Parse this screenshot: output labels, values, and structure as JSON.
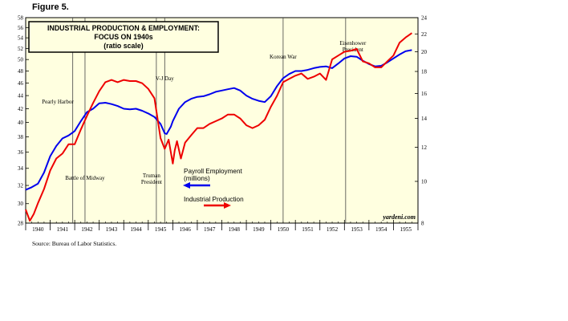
{
  "figure_label": "Figure 5.",
  "source": "Source: Bureau of Labor Statistics.",
  "watermark": "yardeni.com",
  "colors": {
    "background": "#FFFFE0",
    "employment": "#0000EE",
    "production": "#EE0000"
  },
  "chart_data": {
    "type": "line",
    "title": "INDUSTRIAL PRODUCTION & EMPLOYMENT:",
    "subtitle": "FOCUS ON 1940s",
    "subtitle2": "(ratio scale)",
    "x_range": [
      1940,
      1956
    ],
    "x_ticks": [
      "1940",
      "1941",
      "1942",
      "1943",
      "1944",
      "1945",
      "1946",
      "1947",
      "1948",
      "1949",
      "1950",
      "1951",
      "1952",
      "1953",
      "1954",
      "1955"
    ],
    "left_axis": {
      "scale": "log",
      "range": [
        28,
        58
      ],
      "ticks": [
        28,
        30,
        32,
        34,
        36,
        38,
        40,
        42,
        44,
        46,
        48,
        50,
        52,
        54,
        56,
        58
      ]
    },
    "right_axis": {
      "scale": "log",
      "range": [
        8,
        24
      ],
      "ticks": [
        8,
        10,
        12,
        14,
        16,
        18,
        20,
        22,
        24
      ]
    },
    "grid": false,
    "events": [
      {
        "x": 1941.92,
        "label": "Pearly Harbor",
        "label_side": "left"
      },
      {
        "x": 1942.42,
        "label": "Battle of Midway",
        "label_side": "left"
      },
      {
        "x": 1945.33,
        "label": "Truman",
        "label2": "President",
        "label_side": "left"
      },
      {
        "x": 1945.67,
        "label": "V-J Day",
        "label_side": "left"
      },
      {
        "x": 1950.5,
        "label": "Korean War",
        "label_side": "left"
      },
      {
        "x": 1953.05,
        "label": "Eisenhower",
        "label2": "President",
        "label_side": "right"
      }
    ],
    "series": [
      {
        "name": "Payroll Employment",
        "name2": "(millions)",
        "axis": "left",
        "arrow": "left",
        "x": [
          1940.0,
          1940.25,
          1940.5,
          1940.75,
          1941.0,
          1941.25,
          1941.5,
          1941.75,
          1942.0,
          1942.25,
          1942.5,
          1942.75,
          1943.0,
          1943.25,
          1943.5,
          1943.75,
          1944.0,
          1944.25,
          1944.5,
          1944.75,
          1945.0,
          1945.25,
          1945.5,
          1945.67,
          1945.75,
          1945.92,
          1946.0,
          1946.25,
          1946.5,
          1946.75,
          1947.0,
          1947.25,
          1947.5,
          1947.75,
          1948.0,
          1948.25,
          1948.5,
          1948.75,
          1949.0,
          1949.25,
          1949.5,
          1949.75,
          1950.0,
          1950.25,
          1950.5,
          1950.75,
          1951.0,
          1951.25,
          1951.5,
          1951.75,
          1952.0,
          1952.25,
          1952.5,
          1952.75,
          1953.0,
          1953.25,
          1953.5,
          1953.75,
          1954.0,
          1954.25,
          1954.5,
          1954.75,
          1955.0,
          1955.25,
          1955.5,
          1955.75
        ],
        "values": [
          31.5,
          31.8,
          32.2,
          33.5,
          35.5,
          36.8,
          37.8,
          38.2,
          38.8,
          40.2,
          41.5,
          42.0,
          42.8,
          42.9,
          42.7,
          42.4,
          42.0,
          41.9,
          42.0,
          41.7,
          41.3,
          40.8,
          39.8,
          38.5,
          38.4,
          39.4,
          40.2,
          42.0,
          43.0,
          43.5,
          43.8,
          43.9,
          44.2,
          44.6,
          44.8,
          45.0,
          45.2,
          44.8,
          44.0,
          43.5,
          43.2,
          43.0,
          43.9,
          45.5,
          46.8,
          47.5,
          48.0,
          48.0,
          48.2,
          48.5,
          48.7,
          48.8,
          48.5,
          49.3,
          50.2,
          50.6,
          50.5,
          49.8,
          49.2,
          48.8,
          48.9,
          49.5,
          50.2,
          50.9,
          51.5,
          51.7
        ]
      },
      {
        "name": "Industrial Production",
        "axis": "right",
        "arrow": "right",
        "x": [
          1940.0,
          1940.17,
          1940.33,
          1940.5,
          1940.75,
          1941.0,
          1941.25,
          1941.5,
          1941.75,
          1942.0,
          1942.25,
          1942.5,
          1942.75,
          1943.0,
          1943.25,
          1943.5,
          1943.75,
          1944.0,
          1944.25,
          1944.5,
          1944.75,
          1945.0,
          1945.25,
          1945.5,
          1945.67,
          1945.83,
          1946.0,
          1946.08,
          1946.17,
          1946.33,
          1946.5,
          1946.75,
          1947.0,
          1947.25,
          1947.5,
          1947.75,
          1948.0,
          1948.25,
          1948.5,
          1948.75,
          1949.0,
          1949.25,
          1949.5,
          1949.75,
          1950.0,
          1950.25,
          1950.5,
          1950.75,
          1951.0,
          1951.25,
          1951.5,
          1951.75,
          1952.0,
          1952.25,
          1952.5,
          1952.75,
          1953.0,
          1953.25,
          1953.5,
          1953.75,
          1954.0,
          1954.25,
          1954.5,
          1954.75,
          1955.0,
          1955.25,
          1955.5,
          1955.75
        ],
        "values": [
          8.6,
          8.1,
          8.4,
          8.9,
          9.6,
          10.6,
          11.3,
          11.6,
          12.2,
          12.2,
          13.2,
          14.2,
          15.2,
          16.2,
          17.0,
          17.2,
          17.0,
          17.2,
          17.1,
          17.1,
          16.9,
          16.4,
          15.6,
          12.6,
          11.9,
          12.5,
          11.0,
          11.8,
          12.4,
          11.3,
          12.3,
          12.8,
          13.3,
          13.3,
          13.6,
          13.8,
          14.0,
          14.3,
          14.3,
          14.0,
          13.5,
          13.3,
          13.5,
          13.9,
          14.9,
          15.8,
          17.0,
          17.3,
          17.6,
          17.8,
          17.3,
          17.5,
          17.8,
          17.2,
          19.2,
          19.6,
          20.0,
          20.1,
          20.3,
          19.0,
          18.8,
          18.4,
          18.4,
          19.0,
          19.6,
          21.0,
          21.6,
          22.1
        ]
      }
    ]
  }
}
